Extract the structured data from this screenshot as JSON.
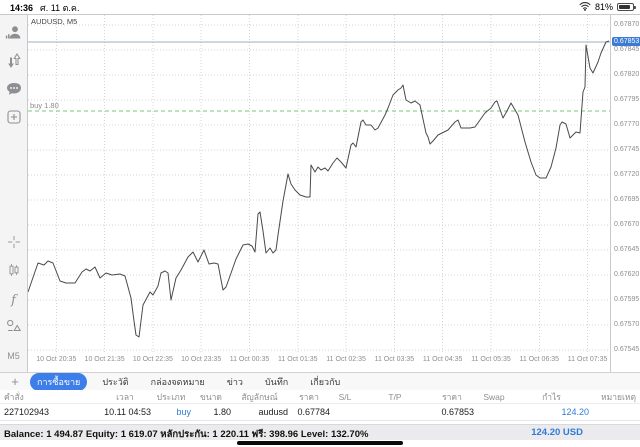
{
  "status_bar": {
    "time": "14:36",
    "date": "ศ. 11 ต.ค.",
    "battery_percent": "81%"
  },
  "sidebar": {
    "timeframe_label": "M5"
  },
  "chart": {
    "symbol_label": "AUDUSD, M5",
    "buy_order_label": "buy 1.80",
    "bid_badge": "0.67853"
  },
  "chart_data": {
    "type": "line",
    "symbol": "AUDUSD",
    "timeframe": "M5",
    "title": "AUDUSD, M5",
    "ylim": [
      0.67542,
      0.6788
    ],
    "grid": true,
    "y_tick_labels": [
      "0.67870",
      "0.67845",
      "0.67820",
      "0.67795",
      "0.67770",
      "0.67745",
      "0.67720",
      "0.67695",
      "0.67670",
      "0.67645",
      "0.67620",
      "0.67595",
      "0.67570",
      "0.67545"
    ],
    "x_tick_labels": [
      "10 Oct 20:35",
      "10 Oct 21:35",
      "10 Oct 22:35",
      "10 Oct 23:35",
      "11 Oct 00:35",
      "11 Oct 01:35",
      "11 Oct 02:35",
      "11 Oct 03:35",
      "11 Oct 04:35",
      "11 Oct 05:35",
      "11 Oct 06:35",
      "11 Oct 07:35"
    ],
    "bid_price": 0.67853,
    "buy_order_price": 0.67784,
    "series": [
      {
        "name": "AUDUSD bid",
        "points": [
          [
            0,
            0.67603
          ],
          [
            10,
            0.67632
          ],
          [
            16,
            0.6763
          ],
          [
            20,
            0.67634
          ],
          [
            25,
            0.67632
          ],
          [
            32,
            0.67614
          ],
          [
            38,
            0.67612
          ],
          [
            47,
            0.67612
          ],
          [
            54,
            0.67623
          ],
          [
            58,
            0.67626
          ],
          [
            62,
            0.67624
          ],
          [
            67,
            0.67628
          ],
          [
            72,
            0.67617
          ],
          [
            78,
            0.67622
          ],
          [
            84,
            0.6762
          ],
          [
            92,
            0.67621
          ],
          [
            97,
            0.67619
          ],
          [
            103,
            0.67597
          ],
          [
            106,
            0.67574
          ],
          [
            108,
            0.6756
          ],
          [
            111,
            0.67558
          ],
          [
            115,
            0.6759
          ],
          [
            122,
            0.67603
          ],
          [
            125,
            0.676
          ],
          [
            130,
            0.67609
          ],
          [
            133,
            0.67622
          ],
          [
            137,
            0.67624
          ],
          [
            140,
            0.67622
          ],
          [
            143,
            0.67595
          ],
          [
            148,
            0.67617
          ],
          [
            153,
            0.67625
          ],
          [
            160,
            0.67638
          ],
          [
            165,
            0.67643
          ],
          [
            170,
            0.67633
          ],
          [
            176,
            0.67645
          ],
          [
            181,
            0.67631
          ],
          [
            186,
            0.67632
          ],
          [
            190,
            0.67631
          ],
          [
            195,
            0.67605
          ],
          [
            198,
            0.67608
          ],
          [
            202,
            0.67619
          ],
          [
            208,
            0.67636
          ],
          [
            215,
            0.6765
          ],
          [
            220,
            0.67651
          ],
          [
            224,
            0.67649
          ],
          [
            227,
            0.67643
          ],
          [
            230,
            0.67681
          ],
          [
            232,
            0.67683
          ],
          [
            235,
            0.67664
          ],
          [
            238,
            0.67642
          ],
          [
            242,
            0.67647
          ],
          [
            245,
            0.67642
          ],
          [
            248,
            0.67645
          ],
          [
            250,
            0.6766
          ],
          [
            255,
            0.67694
          ],
          [
            260,
            0.67721
          ],
          [
            263,
            0.67711
          ],
          [
            267,
            0.67705
          ],
          [
            272,
            0.677
          ],
          [
            278,
            0.67698
          ],
          [
            282,
            0.67698
          ],
          [
            283,
            0.6773
          ],
          [
            287,
            0.67723
          ],
          [
            290,
            0.67728
          ],
          [
            293,
            0.67725
          ],
          [
            297,
            0.67727
          ],
          [
            300,
            0.67724
          ],
          [
            305,
            0.67732
          ],
          [
            309,
            0.67737
          ],
          [
            313,
            0.67733
          ],
          [
            318,
            0.67727
          ],
          [
            323,
            0.6775
          ],
          [
            325,
            0.67752
          ],
          [
            328,
            0.67748
          ],
          [
            333,
            0.67773
          ],
          [
            335,
            0.67775
          ],
          [
            338,
            0.6777
          ],
          [
            343,
            0.6777
          ],
          [
            347,
            0.67765
          ],
          [
            350,
            0.67767
          ],
          [
            357,
            0.6778
          ],
          [
            360,
            0.67787
          ],
          [
            365,
            0.678
          ],
          [
            370,
            0.67805
          ],
          [
            373,
            0.67807
          ],
          [
            375,
            0.6781
          ],
          [
            378,
            0.67795
          ],
          [
            383,
            0.67792
          ],
          [
            387,
            0.67794
          ],
          [
            392,
            0.6779
          ],
          [
            398,
            0.67762
          ],
          [
            400,
            0.67758
          ],
          [
            402,
            0.67751
          ],
          [
            405,
            0.67754
          ],
          [
            410,
            0.6776
          ],
          [
            420,
            0.67765
          ],
          [
            427,
            0.67773
          ],
          [
            430,
            0.67775
          ],
          [
            433,
            0.67767
          ],
          [
            442,
            0.67767
          ],
          [
            447,
            0.67768
          ],
          [
            457,
            0.67782
          ],
          [
            463,
            0.67787
          ],
          [
            467,
            0.67793
          ],
          [
            469,
            0.67794
          ],
          [
            475,
            0.67777
          ],
          [
            479,
            0.67784
          ],
          [
            483,
            0.67792
          ],
          [
            490,
            0.6778
          ],
          [
            497,
            0.67753
          ],
          [
            503,
            0.67733
          ],
          [
            508,
            0.6772
          ],
          [
            512,
            0.67717
          ],
          [
            518,
            0.67717
          ],
          [
            523,
            0.67728
          ],
          [
            528,
            0.67747
          ],
          [
            532,
            0.6777
          ],
          [
            534,
            0.67773
          ],
          [
            538,
            0.67771
          ],
          [
            542,
            0.67757
          ],
          [
            545,
            0.6776
          ],
          [
            548,
            0.67763
          ],
          [
            552,
            0.67762
          ],
          [
            555,
            0.67803
          ],
          [
            557,
            0.67808
          ],
          [
            558,
            0.6785
          ],
          [
            562,
            0.67827
          ],
          [
            565,
            0.67822
          ],
          [
            570,
            0.67833
          ],
          [
            573,
            0.67842
          ],
          [
            578,
            0.67853
          ],
          [
            581,
            0.67854
          ]
        ]
      }
    ]
  },
  "tabs": {
    "add_label": "+",
    "items": [
      {
        "label": "การซื้อขาย",
        "selected": true
      },
      {
        "label": "ประวัติ",
        "selected": false
      },
      {
        "label": "กล่องจดหมาย",
        "selected": false
      },
      {
        "label": "ข่าว",
        "selected": false
      },
      {
        "label": "บันทึก",
        "selected": false
      },
      {
        "label": "เกี่ยวกับ",
        "selected": false
      }
    ]
  },
  "trade_table": {
    "headers": [
      "คำสั่ง",
      "เวลา",
      "ประเภท",
      "ขนาด",
      "สัญลักษณ์",
      "ราคา",
      "S/L",
      "T/P",
      "ราคา",
      "Swap",
      "กำไร",
      "หมายเหตุ"
    ],
    "rows": [
      [
        "227102943",
        "10.11 04:53",
        "buy",
        "1.80",
        "audusd",
        "0.67784",
        "",
        "",
        "0.67853",
        "",
        "124.20",
        ""
      ]
    ]
  },
  "account_bar": {
    "summary": "Balance: 1 494.87 Equity: 1 619.07 หลักประกัน: 1 220.11 ฟรี: 398.96 Level: 132.70%",
    "profit": "124.20 USD"
  },
  "colors": {
    "accent_blue": "#2f7ad9",
    "badge_blue": "#3a7bd5",
    "tab_selected_blue": "#3d7eea",
    "buy_line_green": "#7cc47c",
    "bid_line_gray": "#9fb0bd",
    "chart_line": "#4a4a4a",
    "grid": "#d6d6d6"
  }
}
